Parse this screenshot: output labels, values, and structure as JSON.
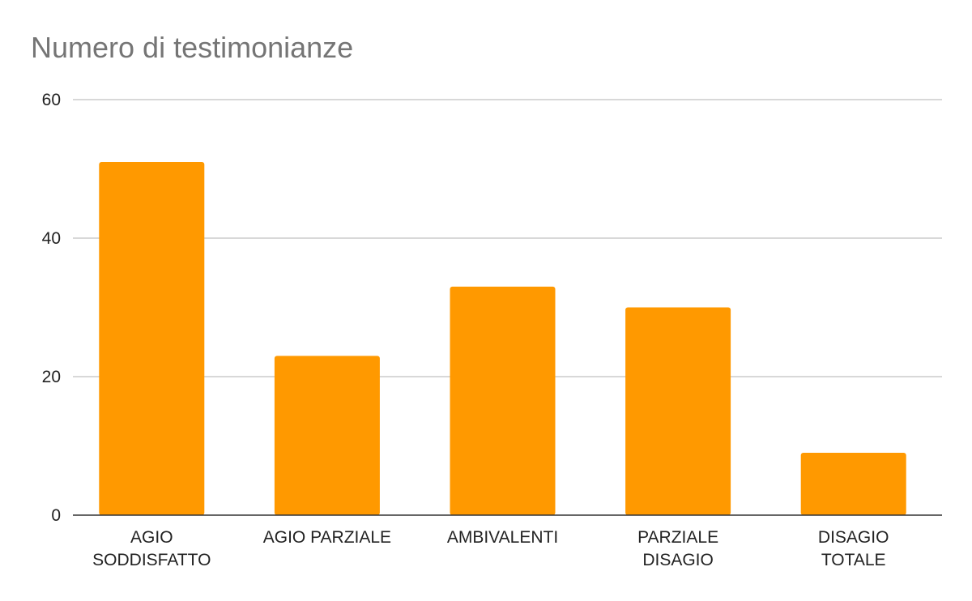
{
  "chart_data": {
    "type": "bar",
    "title": "Numero di testimonianze",
    "categories": [
      [
        "AGIO",
        "SODDISFATTO"
      ],
      [
        "AGIO PARZIALE"
      ],
      [
        "AMBIVALENTI"
      ],
      [
        "PARZIALE",
        "DISAGIO"
      ],
      [
        "DISAGIO",
        "TOTALE"
      ]
    ],
    "values": [
      51,
      23,
      33,
      30,
      9
    ],
    "ylim": [
      0,
      60
    ],
    "yticks": [
      "0",
      "20",
      "40",
      "60"
    ],
    "grid": true,
    "legend": "none",
    "bar_color": "#ff9900",
    "xlabel": "",
    "ylabel": ""
  }
}
